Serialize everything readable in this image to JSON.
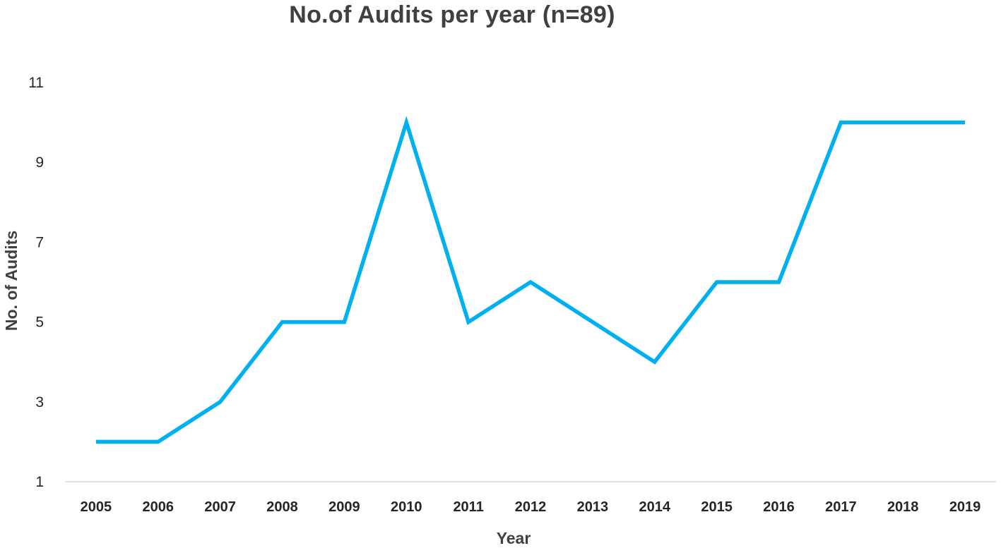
{
  "chart_data": {
    "type": "line",
    "title": "No.of Audits per year (n=89)",
    "xlabel": "Year",
    "ylabel": "No. of Audits",
    "categories": [
      "2005",
      "2006",
      "2007",
      "2008",
      "2009",
      "2010",
      "2011",
      "2012",
      "2013",
      "2014",
      "2015",
      "2016",
      "2017",
      "2018",
      "2019"
    ],
    "series": [
      {
        "values": [
          2,
          2,
          3,
          5,
          5,
          10,
          5,
          6,
          5,
          4,
          6,
          6,
          10,
          10,
          10
        ]
      }
    ],
    "yticks": [
      1,
      3,
      5,
      7,
      9,
      11
    ],
    "ylim": [
      1,
      11
    ],
    "grid": false,
    "legend": "none",
    "line_color": "#00B0F0",
    "axis_color": "#D9D9D9"
  }
}
